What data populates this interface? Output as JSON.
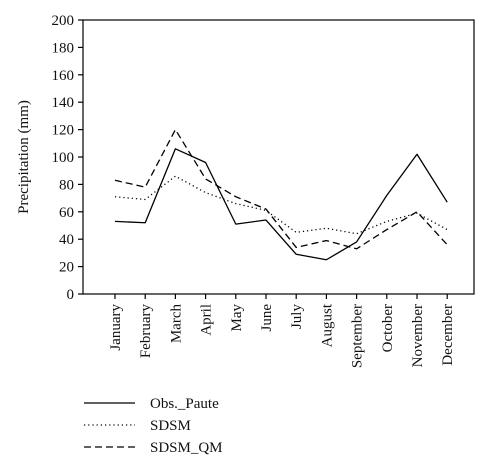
{
  "chart_data": {
    "type": "line",
    "categories": [
      "January",
      "February",
      "March",
      "April",
      "May",
      "June",
      "July",
      "August",
      "September",
      "October",
      "November",
      "December"
    ],
    "series": [
      {
        "name": "Obs._Paute",
        "values": [
          53,
          52,
          106,
          96,
          51,
          54,
          29,
          25,
          38,
          72,
          102,
          67
        ],
        "color": "#000000",
        "dash": "solid"
      },
      {
        "name": "SDSM",
        "values": [
          71,
          69,
          86,
          74,
          66,
          61,
          45,
          48,
          44,
          53,
          59,
          47
        ],
        "color": "#000000",
        "dash": "dotted"
      },
      {
        "name": "SDSM_QM",
        "values": [
          83,
          78,
          120,
          84,
          71,
          62,
          34,
          39,
          33,
          47,
          60,
          36
        ],
        "color": "#000000",
        "dash": "dashed"
      }
    ],
    "ylabel": "Precipitation (mm)",
    "xlabel": "",
    "ylim": [
      0,
      200
    ],
    "yticks": [
      0,
      20,
      40,
      60,
      80,
      100,
      120,
      140,
      160,
      180,
      200
    ],
    "grid": false,
    "legend": "bottom-left"
  }
}
